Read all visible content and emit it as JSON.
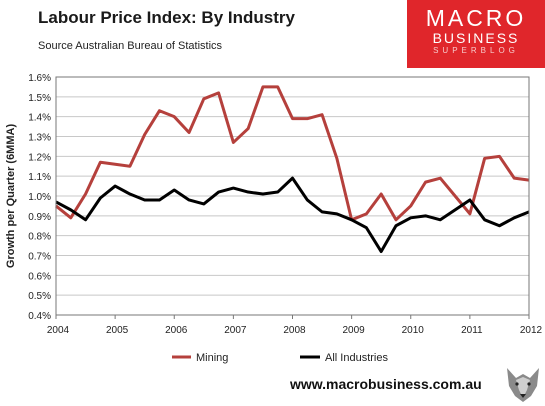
{
  "header": {
    "title": "Labour Price Index: By Industry",
    "source": "Source Australian Bureau of Statistics"
  },
  "logo": {
    "line1": "MACRO",
    "line2": "BUSINESS",
    "line3": "SUPERBLOG"
  },
  "footer": {
    "url": "www.macrobusiness.com.au"
  },
  "colors": {
    "mining": "#b5403c",
    "all_industries": "#000000",
    "logo_red": "#e0262b"
  },
  "icons": {
    "wolf": "wolf-head-icon"
  },
  "chart_data": {
    "type": "line",
    "ylabel": "Growth per Quarter (6MMA)",
    "xlabel": "",
    "ylim": [
      0.4,
      1.6
    ],
    "xlim": [
      2004,
      2012
    ],
    "y_ticks": [
      "0.4%",
      "0.5%",
      "0.6%",
      "0.7%",
      "0.8%",
      "0.9%",
      "1.0%",
      "1.1%",
      "1.2%",
      "1.3%",
      "1.4%",
      "1.5%",
      "1.6%"
    ],
    "y_tick_values": [
      0.4,
      0.5,
      0.6,
      0.7,
      0.8,
      0.9,
      1.0,
      1.1,
      1.2,
      1.3,
      1.4,
      1.5,
      1.6
    ],
    "x_ticks": [
      "2004",
      "2005",
      "2006",
      "2007",
      "2008",
      "2009",
      "2010",
      "2011",
      "2012"
    ],
    "x_tick_values": [
      2004,
      2005,
      2006,
      2007,
      2008,
      2009,
      2010,
      2011,
      2012
    ],
    "grid": "horizontal",
    "legend_position": "bottom",
    "x": [
      2004.0,
      2004.25,
      2004.5,
      2004.75,
      2005.0,
      2005.25,
      2005.5,
      2005.75,
      2006.0,
      2006.25,
      2006.5,
      2006.75,
      2007.0,
      2007.25,
      2007.5,
      2007.75,
      2008.0,
      2008.25,
      2008.5,
      2008.75,
      2009.0,
      2009.25,
      2009.5,
      2009.75,
      2010.0,
      2010.25,
      2010.5,
      2010.75,
      2011.0,
      2011.25,
      2011.5,
      2011.75,
      2012.0
    ],
    "series": [
      {
        "name": "Mining",
        "values": [
          0.95,
          0.89,
          1.01,
          1.17,
          1.16,
          1.15,
          1.31,
          1.43,
          1.4,
          1.32,
          1.49,
          1.52,
          1.27,
          1.34,
          1.55,
          1.55,
          1.39,
          1.39,
          1.41,
          1.19,
          0.88,
          0.91,
          1.01,
          0.88,
          0.95,
          1.07,
          1.09,
          1.0,
          0.91,
          1.19,
          1.2,
          1.09,
          1.08
        ]
      },
      {
        "name": "All Industries",
        "values": [
          0.97,
          0.93,
          0.88,
          0.99,
          1.05,
          1.01,
          0.98,
          0.98,
          1.03,
          0.98,
          0.96,
          1.02,
          1.04,
          1.02,
          1.01,
          1.02,
          1.09,
          0.98,
          0.92,
          0.91,
          0.88,
          0.84,
          0.72,
          0.85,
          0.89,
          0.9,
          0.88,
          0.93,
          0.98,
          0.88,
          0.85,
          0.89,
          0.92
        ]
      }
    ]
  }
}
